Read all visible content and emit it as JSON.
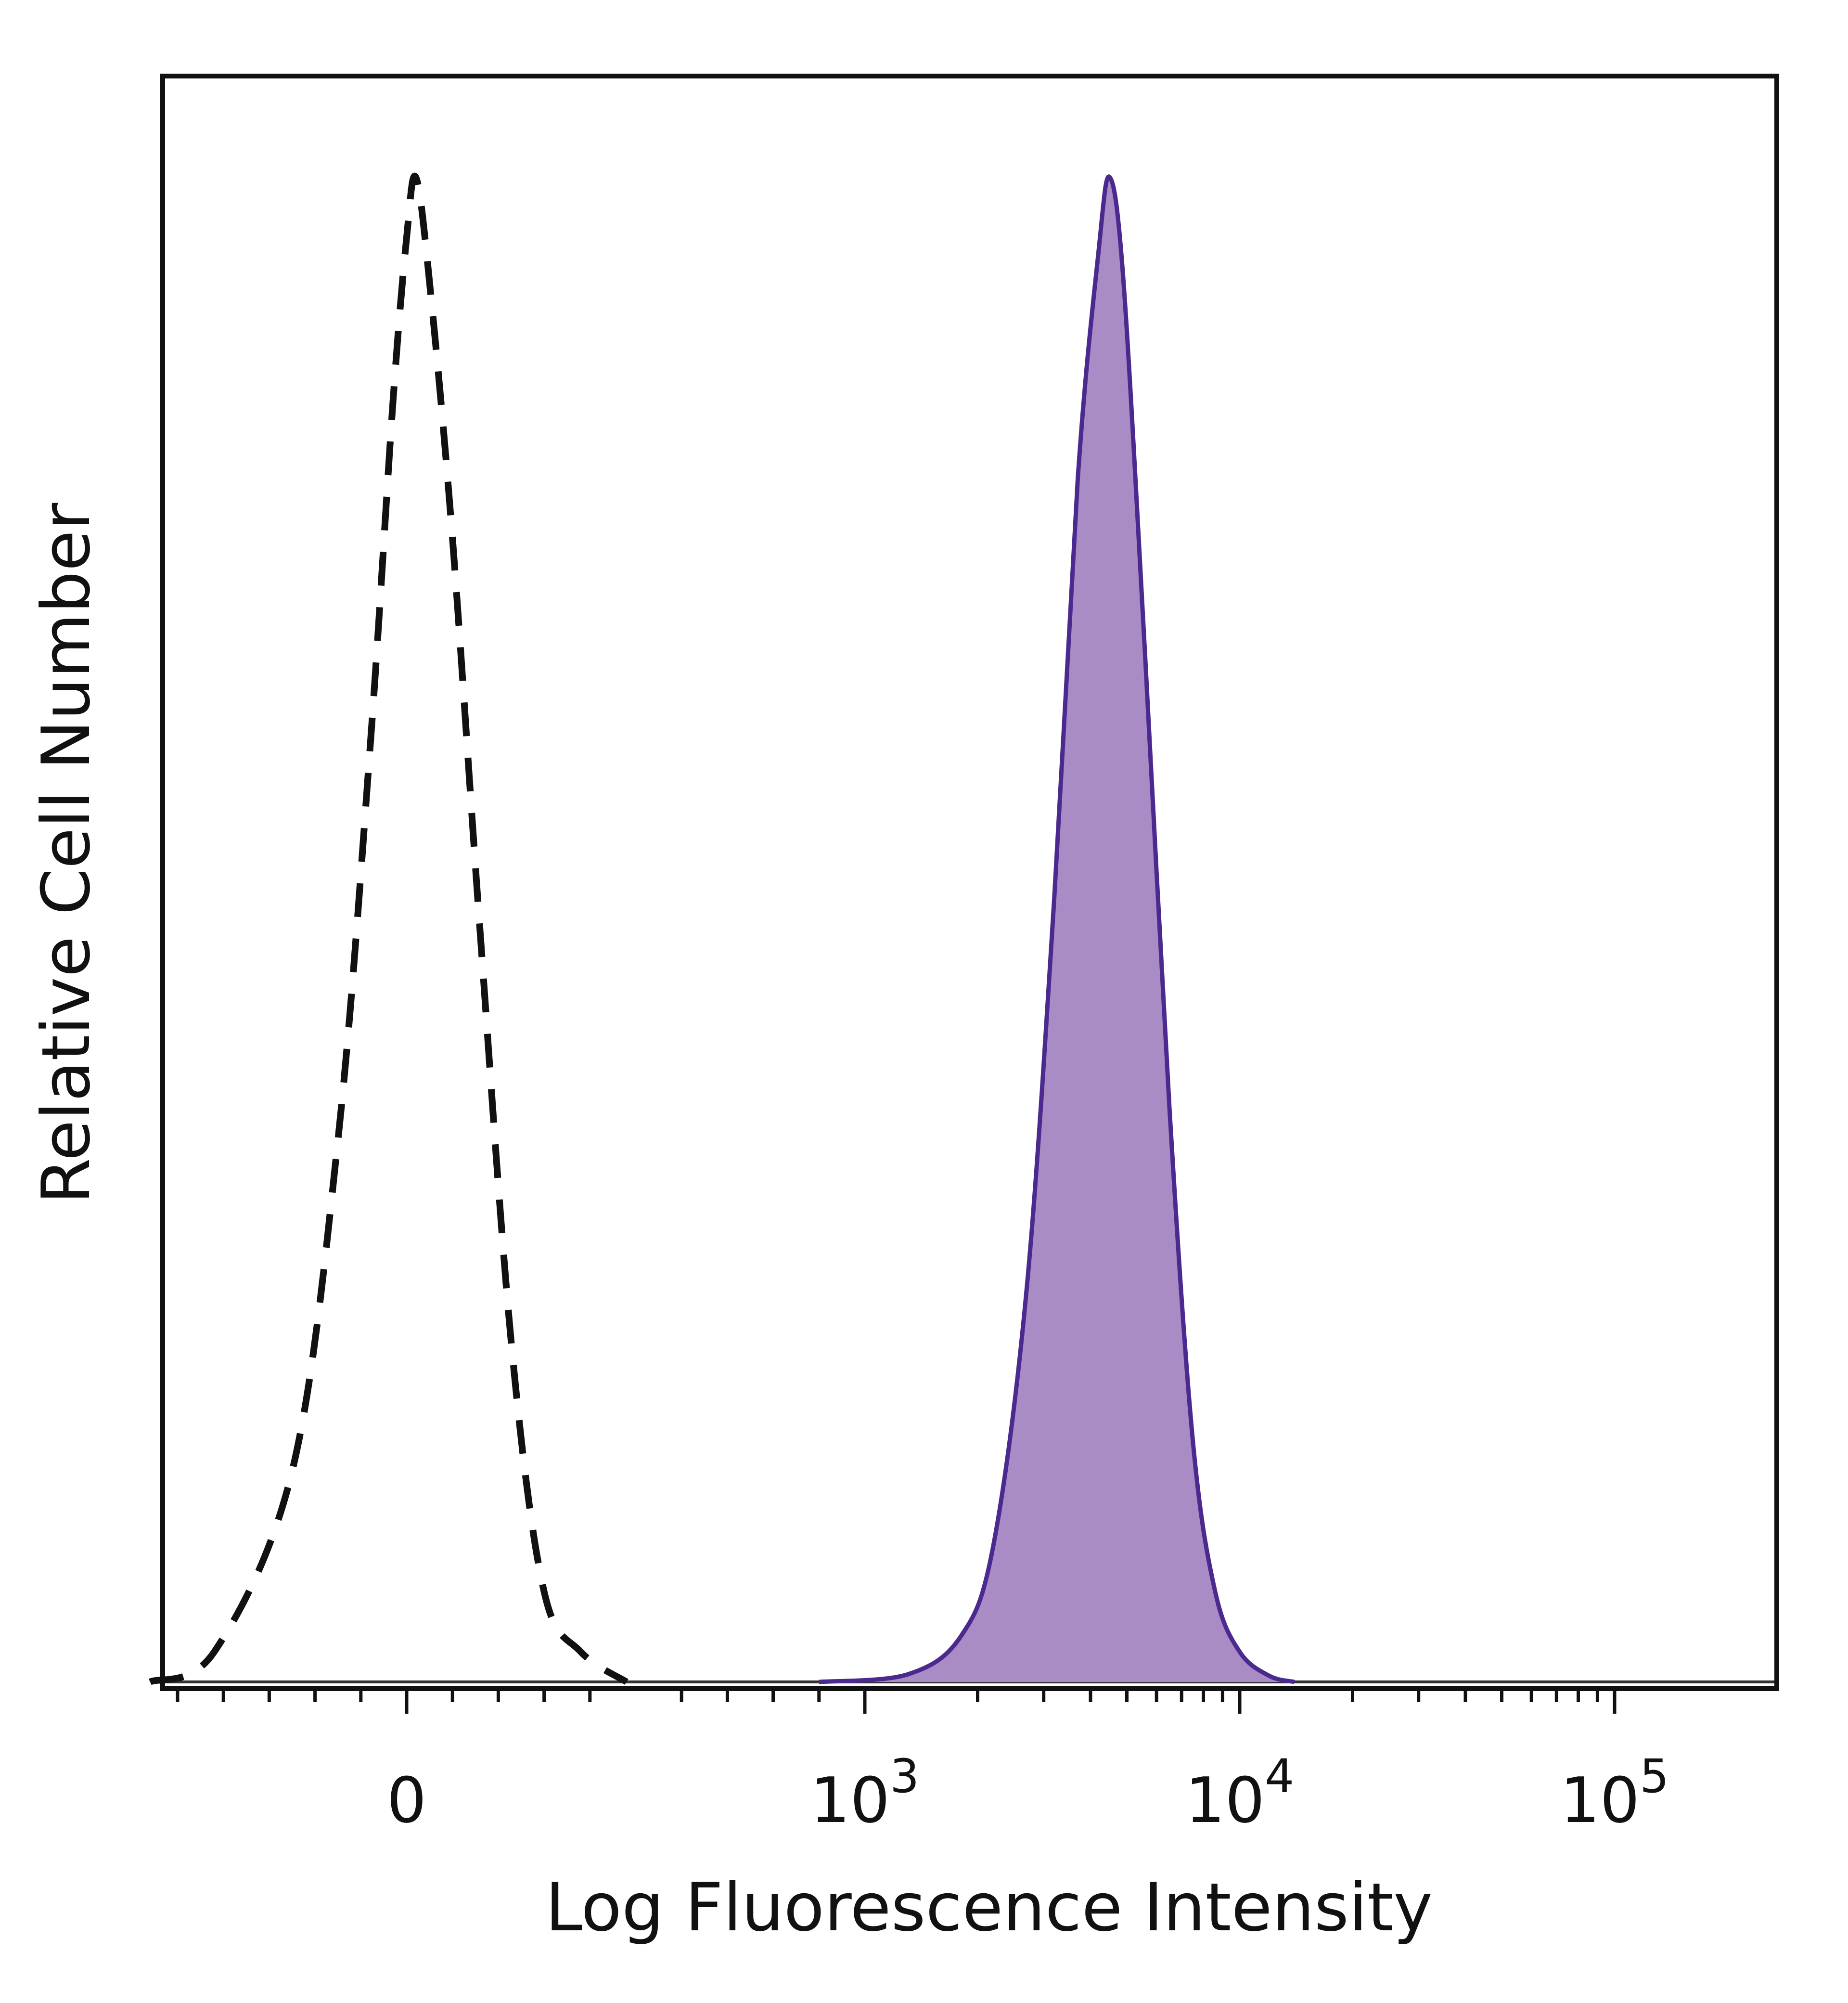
{
  "chart_data": {
    "type": "histogram",
    "title": "",
    "xlabel": "Log Fluorescence Intensity",
    "ylabel": "Relative Cell Number",
    "x_scale": "biexponential (linear near 0, log above)",
    "x_ticks": [
      {
        "value": 0,
        "base": "0",
        "exp": ""
      },
      {
        "value": 1000,
        "base": "10",
        "exp": "3"
      },
      {
        "value": 10000,
        "base": "10",
        "exp": "4"
      },
      {
        "value": 100000,
        "base": "10",
        "exp": "5"
      }
    ],
    "xlim": [
      -700,
      200000
    ],
    "ylim": [
      0,
      1
    ],
    "grid": false,
    "legend": "none",
    "series": [
      {
        "style": "dashed",
        "color": "#111111",
        "fill": "none",
        "points": [
          [
            -560,
            0.0
          ],
          [
            -420,
            0.02
          ],
          [
            -250,
            0.14
          ],
          [
            -150,
            0.36
          ],
          [
            -80,
            0.62
          ],
          [
            -30,
            0.85
          ],
          [
            0,
            0.96
          ],
          [
            20,
            1.0
          ],
          [
            50,
            0.93
          ],
          [
            100,
            0.76
          ],
          [
            160,
            0.5
          ],
          [
            230,
            0.22
          ],
          [
            300,
            0.06
          ],
          [
            380,
            0.02
          ],
          [
            480,
            0.0
          ]
        ]
      },
      {
        "style": "solid",
        "color": "#4b2a8f",
        "fill": "#a98bc6",
        "points": [
          [
            900,
            0.0
          ],
          [
            1300,
            0.005
          ],
          [
            1800,
            0.03
          ],
          [
            2200,
            0.09
          ],
          [
            2700,
            0.26
          ],
          [
            3200,
            0.52
          ],
          [
            3700,
            0.8
          ],
          [
            4200,
            0.95
          ],
          [
            4500,
            1.0
          ],
          [
            4900,
            0.93
          ],
          [
            5600,
            0.68
          ],
          [
            6500,
            0.38
          ],
          [
            7500,
            0.16
          ],
          [
            8600,
            0.06
          ],
          [
            10000,
            0.02
          ],
          [
            12000,
            0.004
          ],
          [
            14000,
            0.0
          ]
        ]
      }
    ]
  },
  "colors": {
    "axis": "#111111",
    "control": "#111111",
    "stained_line": "#4b2a8f",
    "stained_fill": "#a98bc6"
  }
}
